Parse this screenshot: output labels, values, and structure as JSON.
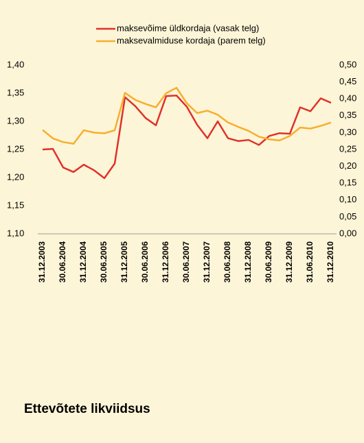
{
  "chart_data": {
    "type": "line",
    "title": "Ettevõtete likviidsus",
    "categories": [
      "31.12.2003",
      null,
      "30.06.2004",
      null,
      "31.12.2004",
      null,
      "30.06.2005",
      null,
      "31.12.2005",
      null,
      "30.06.2006",
      null,
      "31.12.2006",
      null,
      "30.06.2007",
      null,
      "31.12.2007",
      null,
      "30.06.2008",
      null,
      "31.12.2008",
      null,
      "30.06.2009",
      null,
      "31.12.2009",
      null,
      "31.06.2010",
      null,
      "31.12.2010"
    ],
    "series": [
      {
        "name": "maksevõime üldkordaja (vasak telg)",
        "color": "#e0302a",
        "values": [
          1.25,
          1.251,
          1.218,
          1.21,
          1.223,
          1.213,
          1.199,
          1.225,
          1.343,
          1.327,
          1.306,
          1.293,
          1.345,
          1.346,
          1.326,
          1.294,
          1.27,
          1.3,
          1.27,
          1.265,
          1.267,
          1.258,
          1.274,
          1.279,
          1.278,
          1.325,
          1.318,
          1.341,
          1.333
        ]
      },
      {
        "name": "maksevalmiduse kordaja (parem telg)",
        "color": "#f7ae2e",
        "axis": "y2",
        "values": [
          0.308,
          0.283,
          0.272,
          0.267,
          0.307,
          0.3,
          0.298,
          0.307,
          0.418,
          0.397,
          0.385,
          0.375,
          0.417,
          0.433,
          0.387,
          0.358,
          0.365,
          0.353,
          0.33,
          0.317,
          0.305,
          0.288,
          0.28,
          0.277,
          0.29,
          0.315,
          0.312,
          0.32,
          0.33
        ]
      }
    ],
    "ylim": [
      1.1,
      1.4
    ],
    "yticks": [
      {
        "value": 1.1,
        "label": "1,10"
      },
      {
        "value": 1.15,
        "label": "1,15"
      },
      {
        "value": 1.2,
        "label": "1,20"
      },
      {
        "value": 1.25,
        "label": "1,25"
      },
      {
        "value": 1.3,
        "label": "1,30"
      },
      {
        "value": 1.35,
        "label": "1,35"
      },
      {
        "value": 1.4,
        "label": "1,40"
      }
    ],
    "y2lim": [
      0,
      0.5
    ],
    "y2ticks": [
      {
        "value": 0,
        "label": "0,00"
      },
      {
        "value": 0.05,
        "label": "0,05"
      },
      {
        "value": 0.1,
        "label": "0,10"
      },
      {
        "value": 0.15,
        "label": "0,15"
      },
      {
        "value": 0.2,
        "label": "0,20"
      },
      {
        "value": 0.25,
        "label": "0,25"
      },
      {
        "value": 0.3,
        "label": "0,30"
      },
      {
        "value": 0.35,
        "label": "0,35"
      },
      {
        "value": 0.4,
        "label": "0,40"
      },
      {
        "value": 0.45,
        "label": "0,45"
      },
      {
        "value": 0.5,
        "label": "0,50"
      }
    ],
    "grid": false,
    "legend": "top"
  }
}
